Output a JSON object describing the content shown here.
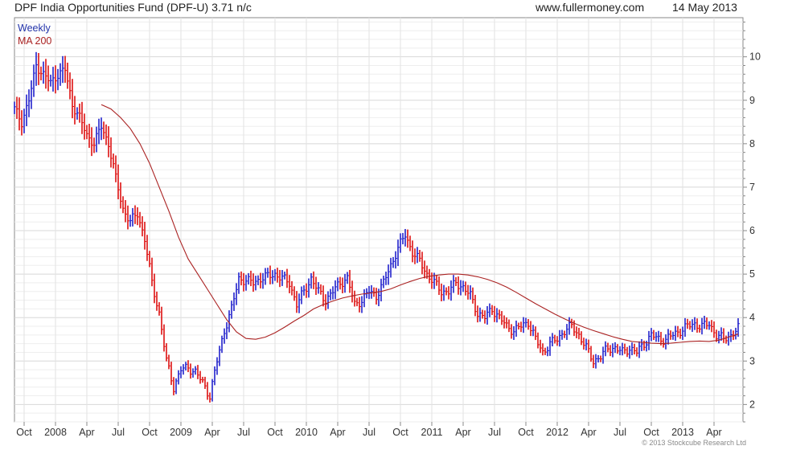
{
  "header": {
    "title": "DPF India Opportunities Fund (DPF-U) 3.71 n/c",
    "site": "www.fullermoney.com",
    "date": "14 May 2013"
  },
  "footer": {
    "copyright": "© 2013 Stockcube Research Ltd"
  },
  "chart_data": {
    "type": "line",
    "title": "DPF India Opportunities Fund (DPF-U) 3.71 n/c",
    "xlabel": "",
    "ylabel": "",
    "ylim": [
      1.6,
      10.9
    ],
    "y_ticks": [
      2,
      3,
      4,
      5,
      6,
      7,
      8,
      9,
      10
    ],
    "y_axis_side": "right",
    "grid": true,
    "legend": [
      "Weekly",
      "MA 200"
    ],
    "legend_position": "top-left",
    "colors": {
      "up": "#2222cc",
      "down": "#dd1111",
      "ma": "#aa2222",
      "grid": "#dddddd",
      "axis": "#888888"
    },
    "x_ticks": [
      {
        "label": "Oct",
        "week": 4
      },
      {
        "label": "2008",
        "week": 17
      },
      {
        "label": "Apr",
        "week": 30
      },
      {
        "label": "Jul",
        "week": 43
      },
      {
        "label": "Oct",
        "week": 56
      },
      {
        "label": "2009",
        "week": 69
      },
      {
        "label": "Apr",
        "week": 82
      },
      {
        "label": "Jul",
        "week": 95
      },
      {
        "label": "Oct",
        "week": 108
      },
      {
        "label": "2010",
        "week": 121
      },
      {
        "label": "Apr",
        "week": 134
      },
      {
        "label": "Jul",
        "week": 147
      },
      {
        "label": "Oct",
        "week": 160
      },
      {
        "label": "2011",
        "week": 173
      },
      {
        "label": "Apr",
        "week": 186
      },
      {
        "label": "Jul",
        "week": 199
      },
      {
        "label": "Oct",
        "week": 212
      },
      {
        "label": "2012",
        "week": 225
      },
      {
        "label": "Apr",
        "week": 238
      },
      {
        "label": "Jul",
        "week": 251
      },
      {
        "label": "Oct",
        "week": 264
      },
      {
        "label": "2013",
        "week": 277
      },
      {
        "label": "Apr",
        "week": 290
      }
    ],
    "series": [
      {
        "name": "Weekly",
        "x": [
          0,
          3,
          6,
          9,
          12,
          15,
          18,
          21,
          24,
          27,
          30,
          33,
          36,
          39,
          42,
          45,
          48,
          51,
          54,
          57,
          60,
          63,
          66,
          69,
          72,
          75,
          78,
          81,
          84,
          87,
          90,
          93,
          96,
          99,
          102,
          105,
          108,
          111,
          114,
          117,
          120,
          123,
          126,
          129,
          132,
          135,
          138,
          141,
          144,
          147,
          150,
          153,
          156,
          159,
          162,
          165,
          168,
          171,
          174,
          177,
          180,
          183,
          186,
          189,
          192,
          195,
          198,
          201,
          204,
          207,
          210,
          213,
          216,
          219,
          222,
          225,
          228,
          231,
          234,
          237,
          240,
          243,
          246,
          249,
          252,
          255,
          258,
          261,
          264,
          267,
          270,
          273,
          276,
          279,
          282,
          285,
          288,
          291,
          294,
          297,
          300
        ],
        "values": [
          8.8,
          8.5,
          9.0,
          9.8,
          9.6,
          9.4,
          9.6,
          9.7,
          8.9,
          8.6,
          8.2,
          8.0,
          8.4,
          8.0,
          7.2,
          6.5,
          6.2,
          6.4,
          5.8,
          4.8,
          4.1,
          3.0,
          2.4,
          2.8,
          2.85,
          2.75,
          2.5,
          2.2,
          3.0,
          3.7,
          4.2,
          4.9,
          4.85,
          4.8,
          4.9,
          4.95,
          5.0,
          4.9,
          4.8,
          4.3,
          4.6,
          4.9,
          4.6,
          4.4,
          4.6,
          4.8,
          4.9,
          4.3,
          4.4,
          4.6,
          4.5,
          4.8,
          5.2,
          5.6,
          5.9,
          5.5,
          5.3,
          5.0,
          4.8,
          4.6,
          4.6,
          4.8,
          4.7,
          4.5,
          4.1,
          4.0,
          4.2,
          4.0,
          3.8,
          3.7,
          3.8,
          3.9,
          3.5,
          3.2,
          3.4,
          3.5,
          3.7,
          3.8,
          3.6,
          3.3,
          3.0,
          3.1,
          3.3,
          3.3,
          3.2,
          3.3,
          3.2,
          3.4,
          3.6,
          3.5,
          3.5,
          3.6,
          3.7,
          3.8,
          3.85,
          3.8,
          3.85,
          3.6,
          3.5,
          3.6,
          3.75
        ]
      },
      {
        "name": "MA 200",
        "x": [
          36,
          40,
          44,
          48,
          52,
          56,
          60,
          64,
          68,
          72,
          76,
          80,
          84,
          88,
          92,
          96,
          100,
          104,
          108,
          112,
          116,
          120,
          124,
          128,
          132,
          136,
          140,
          144,
          148,
          152,
          156,
          160,
          164,
          168,
          172,
          176,
          180,
          184,
          188,
          192,
          196,
          200,
          204,
          208,
          212,
          216,
          220,
          224,
          228,
          232,
          236,
          240,
          244,
          248,
          252,
          256,
          260,
          264,
          268,
          272,
          276,
          280,
          284,
          288,
          292,
          296,
          300
        ],
        "values": [
          8.9,
          8.8,
          8.6,
          8.35,
          8.0,
          7.55,
          7.0,
          6.45,
          5.85,
          5.35,
          5.0,
          4.65,
          4.3,
          3.95,
          3.67,
          3.52,
          3.5,
          3.55,
          3.65,
          3.78,
          3.92,
          4.05,
          4.2,
          4.3,
          4.38,
          4.45,
          4.5,
          4.54,
          4.57,
          4.6,
          4.66,
          4.75,
          4.83,
          4.9,
          4.95,
          4.98,
          5.0,
          5.0,
          4.98,
          4.94,
          4.88,
          4.8,
          4.7,
          4.58,
          4.45,
          4.32,
          4.2,
          4.08,
          3.97,
          3.87,
          3.78,
          3.7,
          3.63,
          3.56,
          3.5,
          3.45,
          3.43,
          3.41,
          3.4,
          3.41,
          3.43,
          3.45,
          3.46,
          3.45,
          3.48,
          3.55,
          3.62
        ]
      }
    ]
  }
}
